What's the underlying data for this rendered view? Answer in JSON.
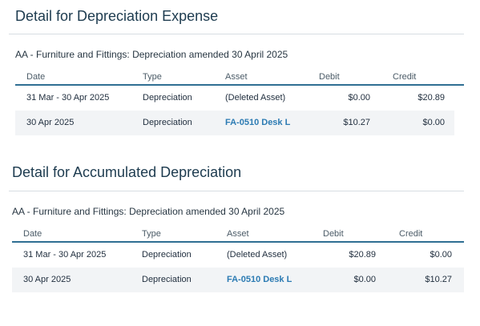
{
  "sections": [
    {
      "title": "Detail for Depreciation Expense",
      "subtitle": "AA - Furniture and Fittings: Depreciation amended 30 April 2025",
      "columns": [
        "Date",
        "Type",
        "Asset",
        "Debit",
        "Credit"
      ],
      "rows": [
        {
          "date": "31 Mar - 30 Apr 2025",
          "type": "Depreciation",
          "asset": "(Deleted Asset)",
          "asset_link": false,
          "debit": "$0.00",
          "credit": "$20.89"
        },
        {
          "date": "30 Apr 2025",
          "type": "Depreciation",
          "asset": "FA-0510 Desk L",
          "asset_link": true,
          "debit": "$10.27",
          "credit": "$0.00"
        }
      ]
    },
    {
      "title": "Detail for Accumulated Depreciation",
      "subtitle": "AA - Furniture and Fittings: Depreciation amended 30 April 2025",
      "columns": [
        "Date",
        "Type",
        "Asset",
        "Debit",
        "Credit"
      ],
      "rows": [
        {
          "date": "31 Mar - 30 Apr 2025",
          "type": "Depreciation",
          "asset": "(Deleted Asset)",
          "asset_link": false,
          "debit": "$20.89",
          "credit": "$0.00"
        },
        {
          "date": "30 Apr 2025",
          "type": "Depreciation",
          "asset": "FA-0510 Desk L",
          "asset_link": true,
          "debit": "$0.00",
          "credit": "$10.27"
        }
      ]
    }
  ],
  "colors": {
    "heading": "#1d3b4f",
    "header_rule": "#2f6f93",
    "link": "#2c7bb3",
    "alt_row": "#f2f4f6"
  }
}
